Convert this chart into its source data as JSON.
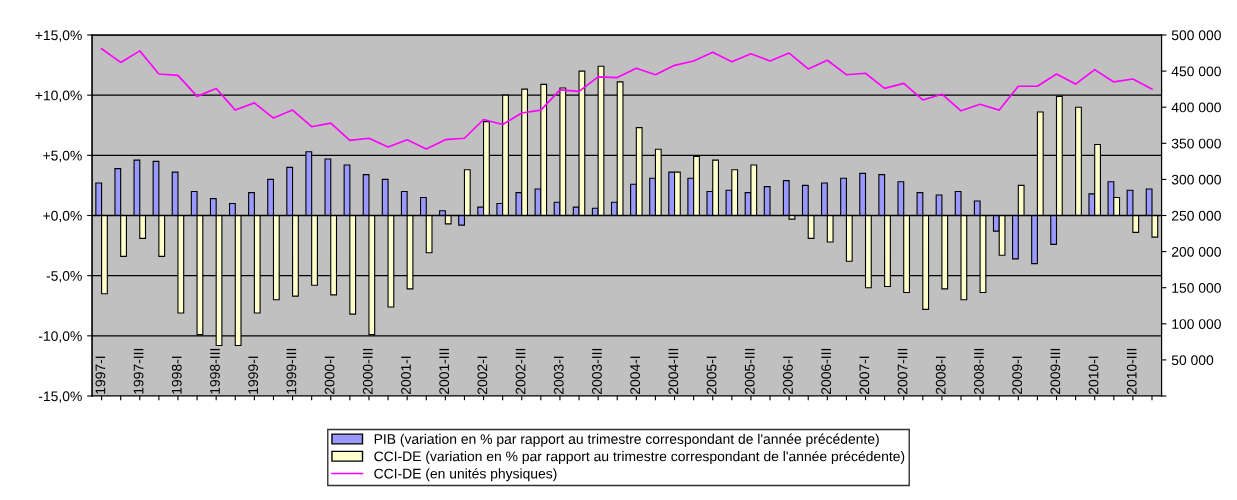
{
  "chart_data": {
    "type": "bar",
    "categories": [
      "1997-I",
      null,
      "1997-III",
      null,
      "1998-I",
      null,
      "1998-III",
      null,
      "1999-I",
      null,
      "1999-III",
      null,
      "2000-I",
      null,
      "2000-III",
      null,
      "2001-I",
      null,
      "2001-III",
      null,
      "2002-I",
      null,
      "2002-III",
      null,
      "2003-I",
      null,
      "2003-III",
      null,
      "2004-I",
      null,
      "2004-III",
      null,
      "2005-I",
      null,
      "2005-III",
      null,
      "2006-I",
      null,
      "2006-III",
      null,
      "2007-I",
      null,
      "2007-III",
      null,
      "2008-I",
      null,
      "2008-III",
      null,
      "2009-I",
      null,
      "2009-III",
      null,
      "2010-I",
      null,
      "2010-III",
      null
    ],
    "series": [
      {
        "name": "PIB (variation en % par rapport au trimestre correspondant de l'année précédente)",
        "color": "#9999ff",
        "values": [
          2.7,
          3.9,
          4.6,
          4.5,
          3.6,
          2.0,
          1.4,
          1.0,
          1.9,
          3.0,
          4.0,
          5.3,
          4.7,
          4.2,
          3.4,
          3.0,
          2.0,
          1.5,
          0.4,
          -0.8,
          0.7,
          1.0,
          1.9,
          2.2,
          1.1,
          0.7,
          0.6,
          1.1,
          2.6,
          3.1,
          3.6,
          3.1,
          2.0,
          2.1,
          1.9,
          2.4,
          2.9,
          2.5,
          2.7,
          3.1,
          3.5,
          3.4,
          2.8,
          1.9,
          1.7,
          2.0,
          1.2,
          -1.3,
          -3.6,
          -4.0,
          -2.4,
          null,
          1.8,
          2.8,
          2.1,
          2.2
        ]
      },
      {
        "name": "CCI-DE (variation en % par rapport au trimestre correspondant de l'année précédente)",
        "color": "#ffffcc",
        "values": [
          -6.5,
          -3.4,
          -1.9,
          -3.4,
          -8.1,
          -9.9,
          -10.8,
          -10.8,
          -8.1,
          -7.0,
          -6.7,
          -5.8,
          -6.6,
          -8.2,
          -9.9,
          -7.6,
          -6.1,
          -3.1,
          -0.7,
          3.8,
          7.8,
          10.0,
          10.5,
          10.9,
          10.6,
          12.0,
          12.4,
          11.1,
          7.3,
          5.5,
          3.6,
          4.9,
          4.6,
          3.8,
          4.2,
          null,
          -0.3,
          -1.9,
          -2.2,
          -3.8,
          -6.0,
          -5.9,
          -6.4,
          -7.8,
          -6.1,
          -7.0,
          -6.4,
          -3.3,
          2.5,
          8.6,
          9.9,
          9.0,
          5.9,
          1.5,
          -1.4,
          -1.8
        ]
      },
      {
        "name": "CCI-DE (en unités physiques)",
        "type": "line",
        "axis": "y2",
        "color": "#ff00ff",
        "values": [
          481000,
          462000,
          478000,
          446000,
          444000,
          415000,
          426000,
          396000,
          406000,
          385000,
          396000,
          373000,
          378000,
          354000,
          357000,
          345000,
          355000,
          342000,
          355000,
          357000,
          383000,
          376000,
          392000,
          396000,
          424000,
          422000,
          442000,
          441000,
          454000,
          445000,
          458000,
          464000,
          476000,
          463000,
          474000,
          464000,
          475000,
          453000,
          465000,
          445000,
          447000,
          426000,
          433000,
          410000,
          418000,
          395000,
          404000,
          396000,
          429000,
          429000,
          446000,
          432000,
          452000,
          435000,
          439000,
          425000
        ]
      }
    ],
    "ylim": [
      -15,
      15
    ],
    "yticks": [
      {
        "value": -15,
        "label": "-15,0%"
      },
      {
        "value": -10,
        "label": "-10,0%"
      },
      {
        "value": -5,
        "label": "-5,0%"
      },
      {
        "value": 0,
        "label": "+0,0%"
      },
      {
        "value": 5,
        "label": "+5,0%"
      },
      {
        "value": 10,
        "label": "+10,0%"
      },
      {
        "value": 15,
        "label": "+15,0%"
      }
    ],
    "y2lim": [
      0,
      500000
    ],
    "y2ticks": [
      {
        "value": 0,
        "label": null
      },
      {
        "value": 50000,
        "label": "50 000"
      },
      {
        "value": 100000,
        "label": "100 000"
      },
      {
        "value": 150000,
        "label": "150 000"
      },
      {
        "value": 200000,
        "label": "200 000"
      },
      {
        "value": 250000,
        "label": "250 000"
      },
      {
        "value": 300000,
        "label": "300 000"
      },
      {
        "value": 350000,
        "label": "350 000"
      },
      {
        "value": 400000,
        "label": "400 000"
      },
      {
        "value": 450000,
        "label": "450 000"
      },
      {
        "value": 500000,
        "label": "500 000"
      }
    ],
    "grid": "y",
    "legend": "bottom",
    "marker": "none",
    "line_style": "solid"
  }
}
